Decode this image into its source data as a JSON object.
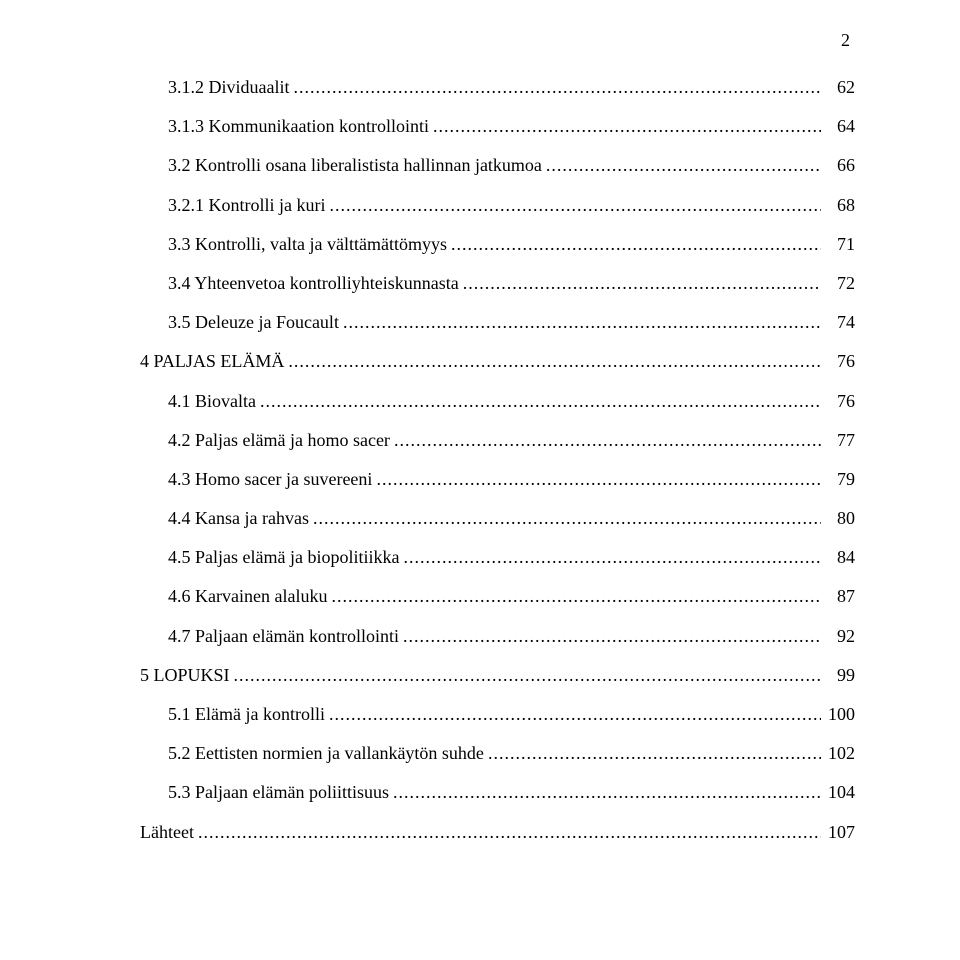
{
  "page_number": "2",
  "typography": {
    "font_family": "Times New Roman",
    "base_font_size_pt": 13,
    "text_color": "#000000",
    "background_color": "#ffffff"
  },
  "toc": [
    {
      "indent": 1,
      "label": "3.1.2 Dividuaalit",
      "page": "62"
    },
    {
      "indent": 1,
      "label": "3.1.3 Kommunikaation kontrollointi",
      "page": "64"
    },
    {
      "indent": 1,
      "label": "3.2 Kontrolli osana liberalistista hallinnan jatkumoa",
      "page": "66"
    },
    {
      "indent": 1,
      "label": "3.2.1 Kontrolli ja kuri",
      "page": "68"
    },
    {
      "indent": 1,
      "label": "3.3 Kontrolli, valta ja välttämättömyys",
      "page": "71"
    },
    {
      "indent": 1,
      "label": "3.4 Yhteenvetoa kontrolliyhteiskunnasta",
      "page": "72"
    },
    {
      "indent": 1,
      "label": "3.5 Deleuze ja Foucault",
      "page": "74"
    },
    {
      "indent": 0,
      "label": "4 PALJAS ELÄMÄ",
      "page": "76"
    },
    {
      "indent": 1,
      "label": "4.1 Biovalta",
      "page": "76"
    },
    {
      "indent": 1,
      "label": "4.2 Paljas elämä ja homo sacer",
      "page": "77"
    },
    {
      "indent": 1,
      "label": "4.3 Homo sacer ja suvereeni",
      "page": "79"
    },
    {
      "indent": 1,
      "label": "4.4 Kansa ja rahvas",
      "page": "80"
    },
    {
      "indent": 1,
      "label": "4.5 Paljas elämä ja biopolitiikka",
      "page": "84"
    },
    {
      "indent": 1,
      "label": "4.6 Karvainen alaluku",
      "page": "87"
    },
    {
      "indent": 1,
      "label": "4.7 Paljaan elämän kontrollointi",
      "page": "92"
    },
    {
      "indent": 0,
      "label": "5 LOPUKSI",
      "page": "99"
    },
    {
      "indent": 1,
      "label": "5.1 Elämä ja kontrolli",
      "page": "100"
    },
    {
      "indent": 1,
      "label": "5.2 Eettisten normien ja vallankäytön suhde",
      "page": "102"
    },
    {
      "indent": 1,
      "label": "5.3 Paljaan elämän poliittisuus",
      "page": "104"
    },
    {
      "indent": 0,
      "label": "Lähteet",
      "page": "107"
    }
  ]
}
